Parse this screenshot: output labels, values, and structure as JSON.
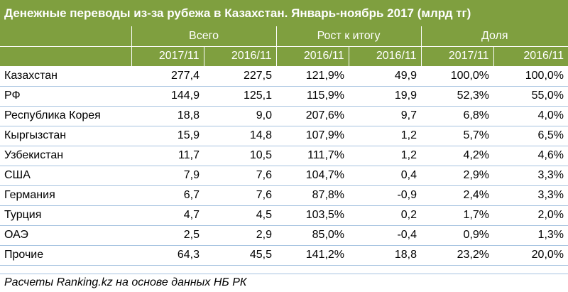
{
  "title": "Денежные переводы из-за рубежа в Казахстан. Январь-ноябрь 2017 (млрд тг)",
  "groups": [
    "Всего",
    "Рост к итогу",
    "Доля"
  ],
  "subheaders": [
    "2017/11",
    "2016/11",
    "2016/11",
    "2016/11",
    "2017/11",
    "2016/11"
  ],
  "rows": [
    {
      "name": "Казахстан",
      "cells": [
        "277,4",
        "227,5",
        "121,9%",
        "49,9",
        "100,0%",
        "100,0%"
      ]
    },
    {
      "name": "РФ",
      "cells": [
        "144,9",
        "125,1",
        "115,9%",
        "19,9",
        "52,3%",
        "55,0%"
      ]
    },
    {
      "name": "Республика Корея",
      "cells": [
        "18,8",
        "9,0",
        "207,6%",
        "9,7",
        "6,8%",
        "4,0%"
      ]
    },
    {
      "name": "Кыргызстан",
      "cells": [
        "15,9",
        "14,8",
        "107,9%",
        "1,2",
        "5,7%",
        "6,5%"
      ]
    },
    {
      "name": "Узбекистан",
      "cells": [
        "11,7",
        "10,5",
        "111,7%",
        "1,2",
        "4,2%",
        "4,6%"
      ]
    },
    {
      "name": "США",
      "cells": [
        "7,9",
        "7,6",
        "104,7%",
        "0,4",
        "2,9%",
        "3,3%"
      ]
    },
    {
      "name": "Германия",
      "cells": [
        "6,7",
        "7,6",
        "87,8%",
        "-0,9",
        "2,4%",
        "3,3%"
      ]
    },
    {
      "name": "Турция",
      "cells": [
        "4,7",
        "4,5",
        "103,5%",
        "0,2",
        "1,7%",
        "2,0%"
      ]
    },
    {
      "name": "ОАЭ",
      "cells": [
        "2,5",
        "2,9",
        "85,0%",
        "-0,4",
        "0,9%",
        "1,3%"
      ]
    },
    {
      "name": "Прочие",
      "cells": [
        "64,3",
        "45,5",
        "141,2%",
        "18,8",
        "23,2%",
        "20,0%"
      ]
    }
  ],
  "source": "Расчеты Ranking.kz на основе данных НБ РК",
  "colors": {
    "header": "#7f9f3f",
    "row_divider": "#a6c3e0"
  }
}
